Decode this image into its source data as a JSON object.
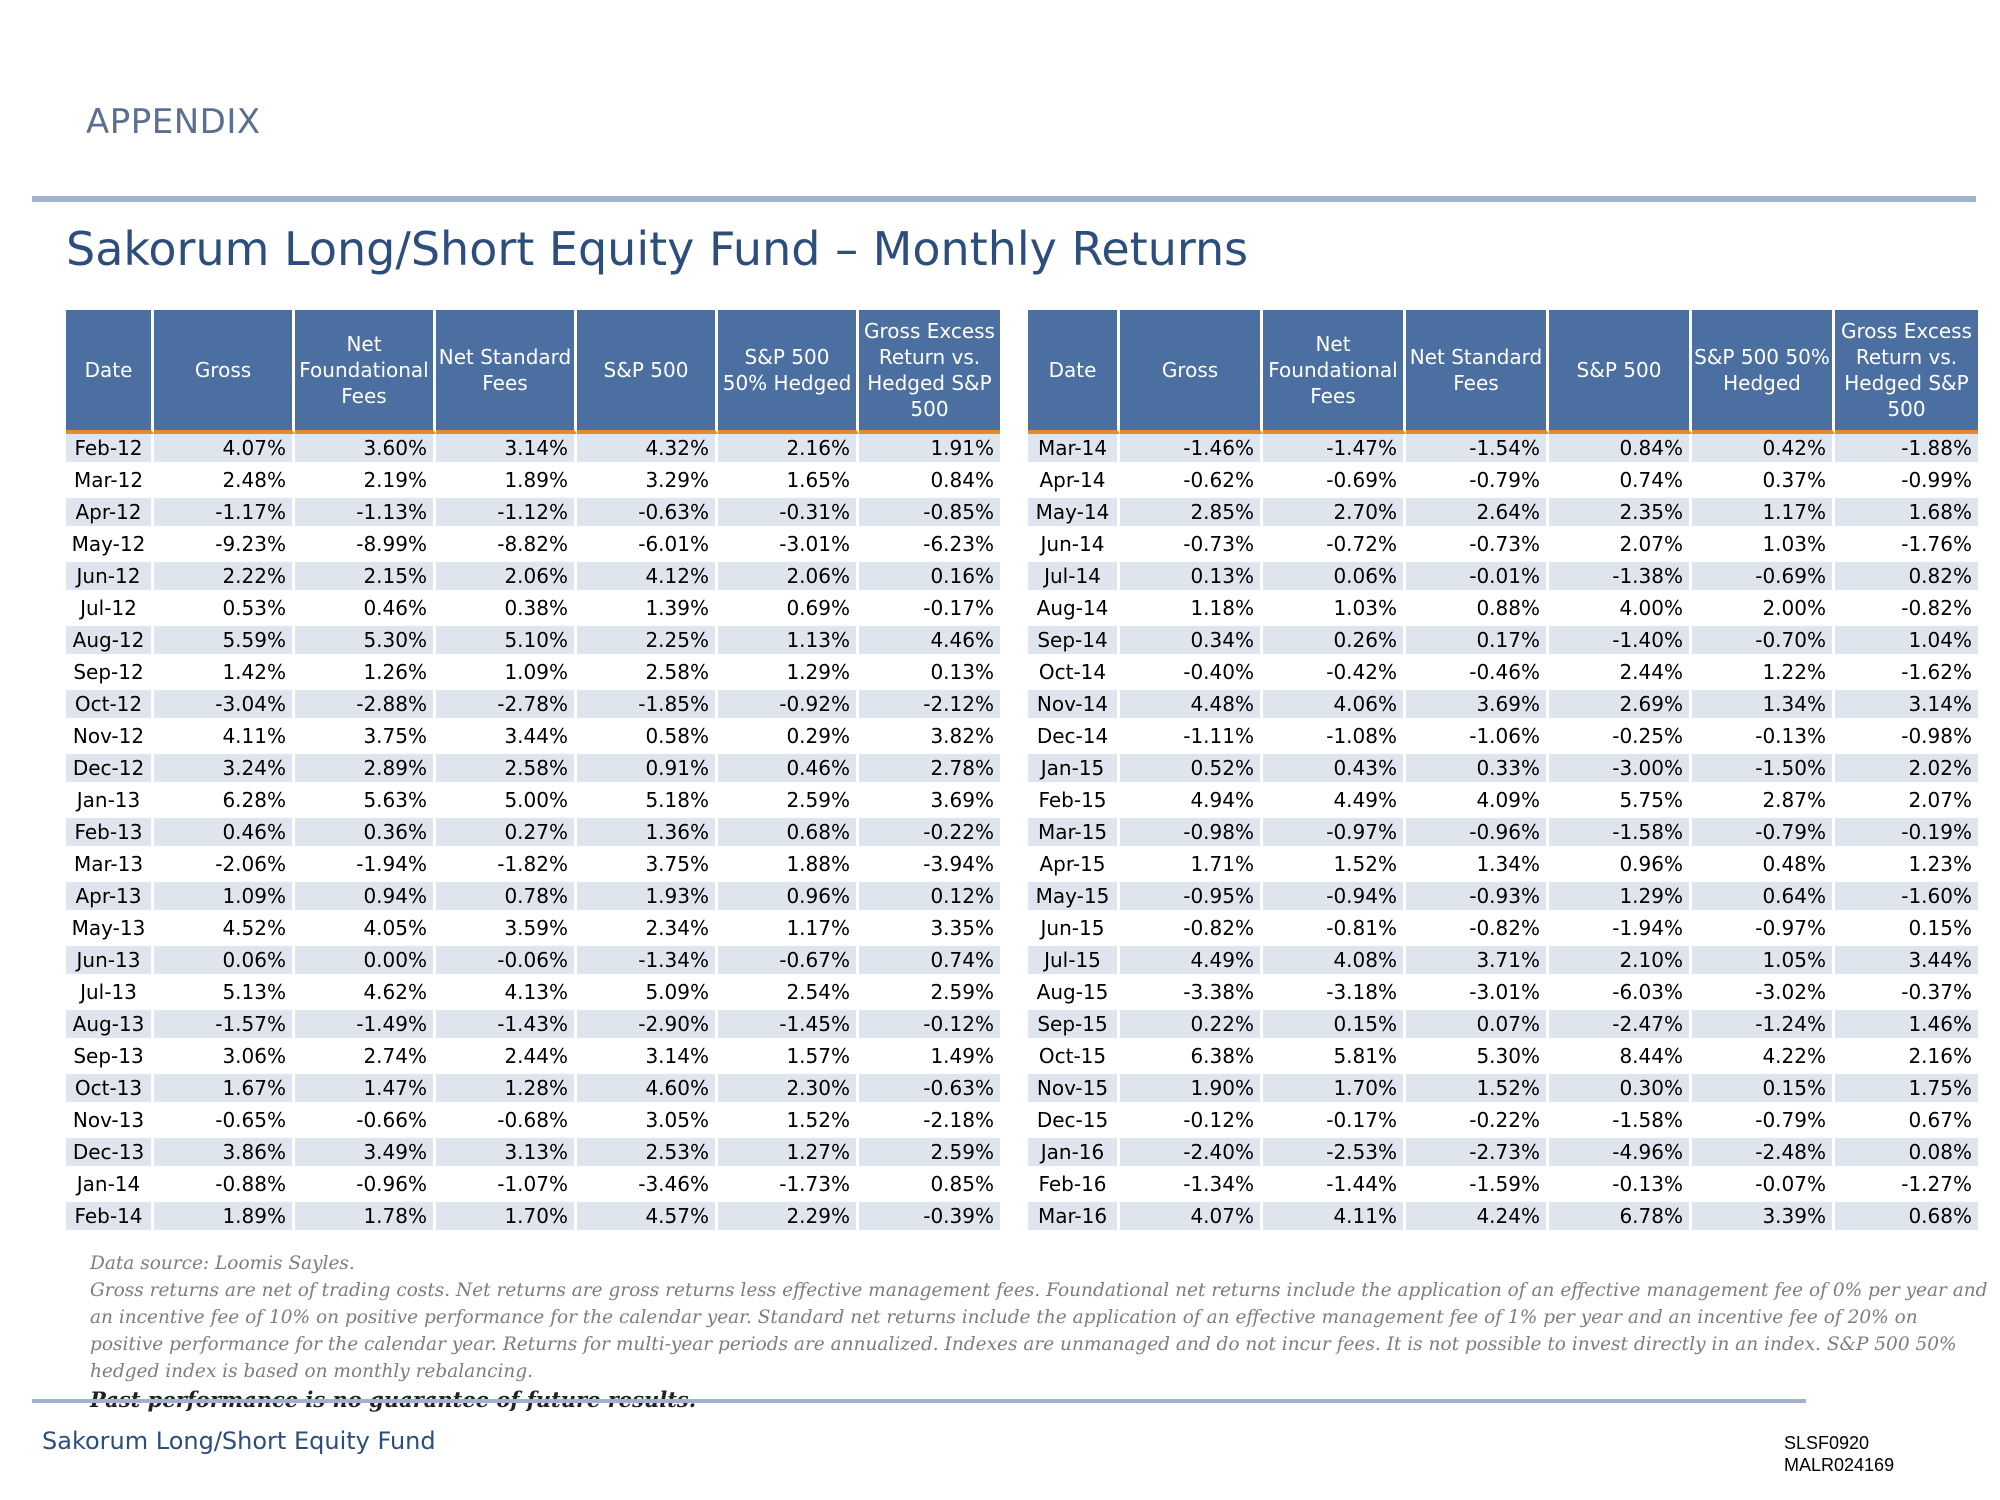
{
  "section_label": "APPENDIX",
  "title": "Sakorum Long/Short Equity Fund – Monthly Returns",
  "columns": [
    "Date",
    "Gross",
    "Net Foundational Fees",
    "Net Standard Fees",
    "S&P 500",
    "S&P 500 50% Hedged",
    "Gross Excess Return vs. Hedged S&P 500"
  ],
  "left_rows": [
    [
      "Feb-12",
      "4.07%",
      "3.60%",
      "3.14%",
      "4.32%",
      "2.16%",
      "1.91%"
    ],
    [
      "Mar-12",
      "2.48%",
      "2.19%",
      "1.89%",
      "3.29%",
      "1.65%",
      "0.84%"
    ],
    [
      "Apr-12",
      "-1.17%",
      "-1.13%",
      "-1.12%",
      "-0.63%",
      "-0.31%",
      "-0.85%"
    ],
    [
      "May-12",
      "-9.23%",
      "-8.99%",
      "-8.82%",
      "-6.01%",
      "-3.01%",
      "-6.23%"
    ],
    [
      "Jun-12",
      "2.22%",
      "2.15%",
      "2.06%",
      "4.12%",
      "2.06%",
      "0.16%"
    ],
    [
      "Jul-12",
      "0.53%",
      "0.46%",
      "0.38%",
      "1.39%",
      "0.69%",
      "-0.17%"
    ],
    [
      "Aug-12",
      "5.59%",
      "5.30%",
      "5.10%",
      "2.25%",
      "1.13%",
      "4.46%"
    ],
    [
      "Sep-12",
      "1.42%",
      "1.26%",
      "1.09%",
      "2.58%",
      "1.29%",
      "0.13%"
    ],
    [
      "Oct-12",
      "-3.04%",
      "-2.88%",
      "-2.78%",
      "-1.85%",
      "-0.92%",
      "-2.12%"
    ],
    [
      "Nov-12",
      "4.11%",
      "3.75%",
      "3.44%",
      "0.58%",
      "0.29%",
      "3.82%"
    ],
    [
      "Dec-12",
      "3.24%",
      "2.89%",
      "2.58%",
      "0.91%",
      "0.46%",
      "2.78%"
    ],
    [
      "Jan-13",
      "6.28%",
      "5.63%",
      "5.00%",
      "5.18%",
      "2.59%",
      "3.69%"
    ],
    [
      "Feb-13",
      "0.46%",
      "0.36%",
      "0.27%",
      "1.36%",
      "0.68%",
      "-0.22%"
    ],
    [
      "Mar-13",
      "-2.06%",
      "-1.94%",
      "-1.82%",
      "3.75%",
      "1.88%",
      "-3.94%"
    ],
    [
      "Apr-13",
      "1.09%",
      "0.94%",
      "0.78%",
      "1.93%",
      "0.96%",
      "0.12%"
    ],
    [
      "May-13",
      "4.52%",
      "4.05%",
      "3.59%",
      "2.34%",
      "1.17%",
      "3.35%"
    ],
    [
      "Jun-13",
      "0.06%",
      "0.00%",
      "-0.06%",
      "-1.34%",
      "-0.67%",
      "0.74%"
    ],
    [
      "Jul-13",
      "5.13%",
      "4.62%",
      "4.13%",
      "5.09%",
      "2.54%",
      "2.59%"
    ],
    [
      "Aug-13",
      "-1.57%",
      "-1.49%",
      "-1.43%",
      "-2.90%",
      "-1.45%",
      "-0.12%"
    ],
    [
      "Sep-13",
      "3.06%",
      "2.74%",
      "2.44%",
      "3.14%",
      "1.57%",
      "1.49%"
    ],
    [
      "Oct-13",
      "1.67%",
      "1.47%",
      "1.28%",
      "4.60%",
      "2.30%",
      "-0.63%"
    ],
    [
      "Nov-13",
      "-0.65%",
      "-0.66%",
      "-0.68%",
      "3.05%",
      "1.52%",
      "-2.18%"
    ],
    [
      "Dec-13",
      "3.86%",
      "3.49%",
      "3.13%",
      "2.53%",
      "1.27%",
      "2.59%"
    ],
    [
      "Jan-14",
      "-0.88%",
      "-0.96%",
      "-1.07%",
      "-3.46%",
      "-1.73%",
      "0.85%"
    ],
    [
      "Feb-14",
      "1.89%",
      "1.78%",
      "1.70%",
      "4.57%",
      "2.29%",
      "-0.39%"
    ]
  ],
  "right_rows": [
    [
      "Mar-14",
      "-1.46%",
      "-1.47%",
      "-1.54%",
      "0.84%",
      "0.42%",
      "-1.88%"
    ],
    [
      "Apr-14",
      "-0.62%",
      "-0.69%",
      "-0.79%",
      "0.74%",
      "0.37%",
      "-0.99%"
    ],
    [
      "May-14",
      "2.85%",
      "2.70%",
      "2.64%",
      "2.35%",
      "1.17%",
      "1.68%"
    ],
    [
      "Jun-14",
      "-0.73%",
      "-0.72%",
      "-0.73%",
      "2.07%",
      "1.03%",
      "-1.76%"
    ],
    [
      "Jul-14",
      "0.13%",
      "0.06%",
      "-0.01%",
      "-1.38%",
      "-0.69%",
      "0.82%"
    ],
    [
      "Aug-14",
      "1.18%",
      "1.03%",
      "0.88%",
      "4.00%",
      "2.00%",
      "-0.82%"
    ],
    [
      "Sep-14",
      "0.34%",
      "0.26%",
      "0.17%",
      "-1.40%",
      "-0.70%",
      "1.04%"
    ],
    [
      "Oct-14",
      "-0.40%",
      "-0.42%",
      "-0.46%",
      "2.44%",
      "1.22%",
      "-1.62%"
    ],
    [
      "Nov-14",
      "4.48%",
      "4.06%",
      "3.69%",
      "2.69%",
      "1.34%",
      "3.14%"
    ],
    [
      "Dec-14",
      "-1.11%",
      "-1.08%",
      "-1.06%",
      "-0.25%",
      "-0.13%",
      "-0.98%"
    ],
    [
      "Jan-15",
      "0.52%",
      "0.43%",
      "0.33%",
      "-3.00%",
      "-1.50%",
      "2.02%"
    ],
    [
      "Feb-15",
      "4.94%",
      "4.49%",
      "4.09%",
      "5.75%",
      "2.87%",
      "2.07%"
    ],
    [
      "Mar-15",
      "-0.98%",
      "-0.97%",
      "-0.96%",
      "-1.58%",
      "-0.79%",
      "-0.19%"
    ],
    [
      "Apr-15",
      "1.71%",
      "1.52%",
      "1.34%",
      "0.96%",
      "0.48%",
      "1.23%"
    ],
    [
      "May-15",
      "-0.95%",
      "-0.94%",
      "-0.93%",
      "1.29%",
      "0.64%",
      "-1.60%"
    ],
    [
      "Jun-15",
      "-0.82%",
      "-0.81%",
      "-0.82%",
      "-1.94%",
      "-0.97%",
      "0.15%"
    ],
    [
      "Jul-15",
      "4.49%",
      "4.08%",
      "3.71%",
      "2.10%",
      "1.05%",
      "3.44%"
    ],
    [
      "Aug-15",
      "-3.38%",
      "-3.18%",
      "-3.01%",
      "-6.03%",
      "-3.02%",
      "-0.37%"
    ],
    [
      "Sep-15",
      "0.22%",
      "0.15%",
      "0.07%",
      "-2.47%",
      "-1.24%",
      "1.46%"
    ],
    [
      "Oct-15",
      "6.38%",
      "5.81%",
      "5.30%",
      "8.44%",
      "4.22%",
      "2.16%"
    ],
    [
      "Nov-15",
      "1.90%",
      "1.70%",
      "1.52%",
      "0.30%",
      "0.15%",
      "1.75%"
    ],
    [
      "Dec-15",
      "-0.12%",
      "-0.17%",
      "-0.22%",
      "-1.58%",
      "-0.79%",
      "0.67%"
    ],
    [
      "Jan-16",
      "-2.40%",
      "-2.53%",
      "-2.73%",
      "-4.96%",
      "-2.48%",
      "0.08%"
    ],
    [
      "Feb-16",
      "-1.34%",
      "-1.44%",
      "-1.59%",
      "-0.13%",
      "-0.07%",
      "-1.27%"
    ],
    [
      "Mar-16",
      "4.07%",
      "4.11%",
      "4.24%",
      "6.78%",
      "3.39%",
      "0.68%"
    ]
  ],
  "footnotes": {
    "source": "Data source: Loomis Sayles.",
    "body": "Gross returns are net of trading costs. Net returns are gross returns less effective management fees. Foundational net returns include the application of an effective management fee of 0% per year and an incentive fee of 10% on positive performance for the calendar year. Standard net returns include the application of an effective management fee of 1% per year and an incentive fee of 20% on positive performance for the calendar year. Returns for multi-year periods are annualized. Indexes are unmanaged and do not incur fees. It is not possible to invest directly in an index.  S&P 500 50% hedged index is based on monthly rebalancing.",
    "disclaimer": "Past performance is no guarantee of future results."
  },
  "footer": {
    "brand": "Sakorum Long/Short Equity Fund",
    "code1": "SLSF0920",
    "code2": "MALR024169"
  }
}
